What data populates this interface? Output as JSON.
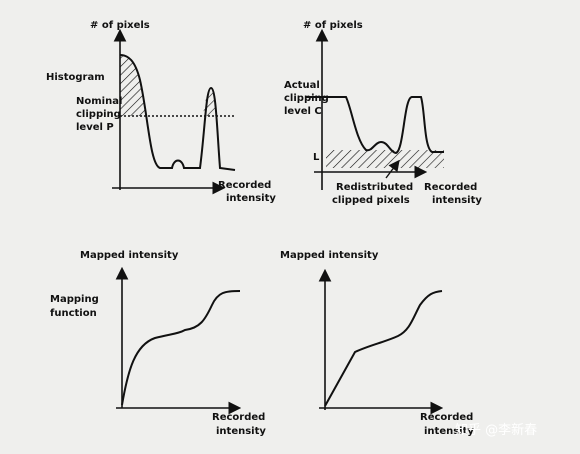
{
  "panels": [
    {
      "y_label": "# of pixels",
      "x_label": [
        "Recorded",
        "intensity"
      ],
      "curve_label": "Histogram",
      "clip_label": [
        "Nominal",
        "clipping",
        "level P"
      ]
    },
    {
      "y_label": "# of pixels",
      "x_label": [
        "Recorded",
        "intensity"
      ],
      "clip_label": [
        "Actual",
        "clipping",
        "level C"
      ],
      "level_label": "L",
      "band_label": [
        "Redistributed",
        "clipped pixels"
      ]
    },
    {
      "y_label": "Mapped intensity",
      "x_label": [
        "Recorded",
        "intensity"
      ],
      "curve_label": [
        "Mapping",
        "function"
      ]
    },
    {
      "y_label": "Mapped intensity",
      "x_label": [
        "Recorded",
        "intensity"
      ]
    }
  ],
  "watermark": "知乎 @李新春"
}
